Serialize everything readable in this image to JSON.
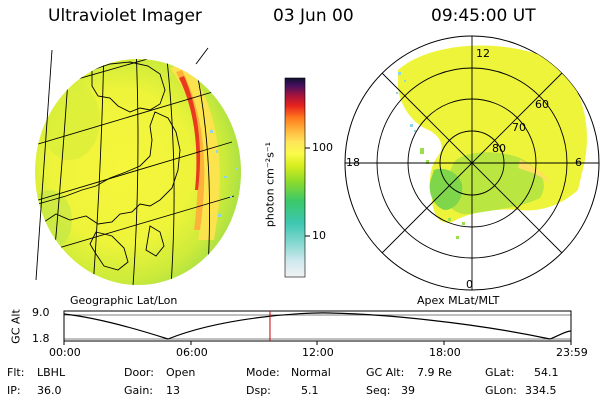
{
  "header": {
    "instrument": "Ultraviolet Imager",
    "date": "03 Jun 00",
    "time": "09:45:00 UT"
  },
  "colorbar": {
    "unit_label": "photon cm⁻²s⁻¹",
    "ticks": [
      "100",
      "10"
    ]
  },
  "geo_panel": {
    "caption": "Geographic Lat/Lon"
  },
  "polar_panel": {
    "caption": "Apex MLat/MLT",
    "mlt_labels": [
      "12",
      "18",
      "6",
      "0"
    ],
    "mlat_labels": [
      "60",
      "70",
      "80"
    ]
  },
  "altitude_plot": {
    "ylabel": "GC Alt",
    "ytick_top": "9.0",
    "ytick_bottom": "1.8",
    "time_labels": [
      "00:00",
      "06:00",
      "12:00",
      "18:00",
      "23:59"
    ],
    "current_time_marker": "09:45",
    "marker_color": "#cc0000"
  },
  "info": {
    "flt": {
      "label": "Flt:",
      "value": "LBHL"
    },
    "ip": {
      "label": "IP:",
      "value": "36.0"
    },
    "door": {
      "label": "Door:",
      "value": "Open"
    },
    "gain": {
      "label": "Gain:",
      "value": "13"
    },
    "mode": {
      "label": "Mode:",
      "value": "Normal"
    },
    "dsp": {
      "label": "Dsp:",
      "value": "5.1"
    },
    "gcalt": {
      "label": "GC Alt:",
      "value": "7.9 Re"
    },
    "seq": {
      "label": "Seq:",
      "value": "39"
    },
    "glat": {
      "label": "GLat:",
      "value": "54.1"
    },
    "glon": {
      "label": "GLon:",
      "value": "334.5"
    }
  }
}
